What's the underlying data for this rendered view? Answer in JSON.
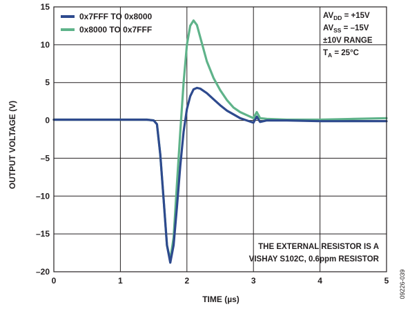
{
  "chart_data": {
    "type": "line",
    "xlabel": "TIME (µs)",
    "ylabel": "OUTPUT VOLTAGE (V)",
    "xlim": [
      0,
      5
    ],
    "ylim": [
      -20,
      15
    ],
    "xticks": [
      0,
      1,
      2,
      3,
      4,
      5
    ],
    "yticks": [
      15,
      10,
      5,
      0,
      -5,
      -10,
      -15,
      -20
    ],
    "xtick_labels": [
      "0",
      "1",
      "2",
      "3",
      "4",
      "5"
    ],
    "ytick_labels": [
      "15",
      "10",
      "5",
      "0",
      "–5",
      "–10",
      "–15",
      "–20"
    ],
    "grid": true,
    "legend_position": "top-left",
    "series": [
      {
        "name": "0x7FFF TO 0x8000",
        "color": "#2e4a8e",
        "x": [
          0,
          0.5,
          1.0,
          1.4,
          1.5,
          1.55,
          1.6,
          1.65,
          1.7,
          1.75,
          1.8,
          1.85,
          1.9,
          1.95,
          2.0,
          2.05,
          2.1,
          2.15,
          2.2,
          2.3,
          2.4,
          2.5,
          2.6,
          2.7,
          2.8,
          2.9,
          3.0,
          3.05,
          3.1,
          3.2,
          3.5,
          4.0,
          4.5,
          5.0
        ],
        "y": [
          0.1,
          0.1,
          0.1,
          0.1,
          0.0,
          -0.5,
          -4.5,
          -10.5,
          -16.5,
          -18.8,
          -16.5,
          -11.5,
          -6.0,
          -1.5,
          1.5,
          3.2,
          4.1,
          4.3,
          4.2,
          3.6,
          2.8,
          2.0,
          1.3,
          0.8,
          0.3,
          0.0,
          -0.3,
          0.5,
          -0.2,
          0.0,
          0.0,
          -0.1,
          -0.1,
          -0.1
        ]
      },
      {
        "name": "0x8000 TO 0x7FFF",
        "color": "#5fb38a",
        "x": [
          0,
          0.5,
          1.0,
          1.4,
          1.5,
          1.55,
          1.6,
          1.65,
          1.7,
          1.75,
          1.8,
          1.85,
          1.9,
          1.95,
          2.0,
          2.05,
          2.1,
          2.15,
          2.2,
          2.3,
          2.4,
          2.5,
          2.6,
          2.7,
          2.8,
          2.9,
          3.0,
          3.05,
          3.1,
          3.2,
          3.5,
          4.0,
          4.5,
          5.0
        ],
        "y": [
          0.1,
          0.1,
          0.1,
          0.1,
          0.0,
          -0.5,
          -4.5,
          -10.5,
          -16.5,
          -18.4,
          -15.5,
          -8.5,
          -1.5,
          5.0,
          10.0,
          12.5,
          13.2,
          12.6,
          11.0,
          7.8,
          5.6,
          4.0,
          2.7,
          1.7,
          1.1,
          0.7,
          0.3,
          1.1,
          0.3,
          0.2,
          0.1,
          0.1,
          0.2,
          0.3
        ]
      }
    ],
    "conditions": [
      "AV<sub>DD</sub> = +15V",
      "AV<sub>SS</sub> = –15V",
      "±10V RANGE",
      "T<sub>A</sub> = 25°C"
    ],
    "conditions_text": {
      "avdd_main": "AV",
      "avdd_sub": "DD",
      "avdd_val": " = +15V",
      "avss_main": "AV",
      "avss_sub": "SS",
      "avss_val": " = –15V",
      "range": "±10V RANGE",
      "ta_main": "T",
      "ta_sub": "A",
      "ta_val": " = 25°C"
    },
    "note_line1": "THE EXTERNAL RESISTOR IS A",
    "note_line2": "VISHAY S102C, 0.6ppm RESISTOR",
    "figure_id": "09226-039"
  }
}
